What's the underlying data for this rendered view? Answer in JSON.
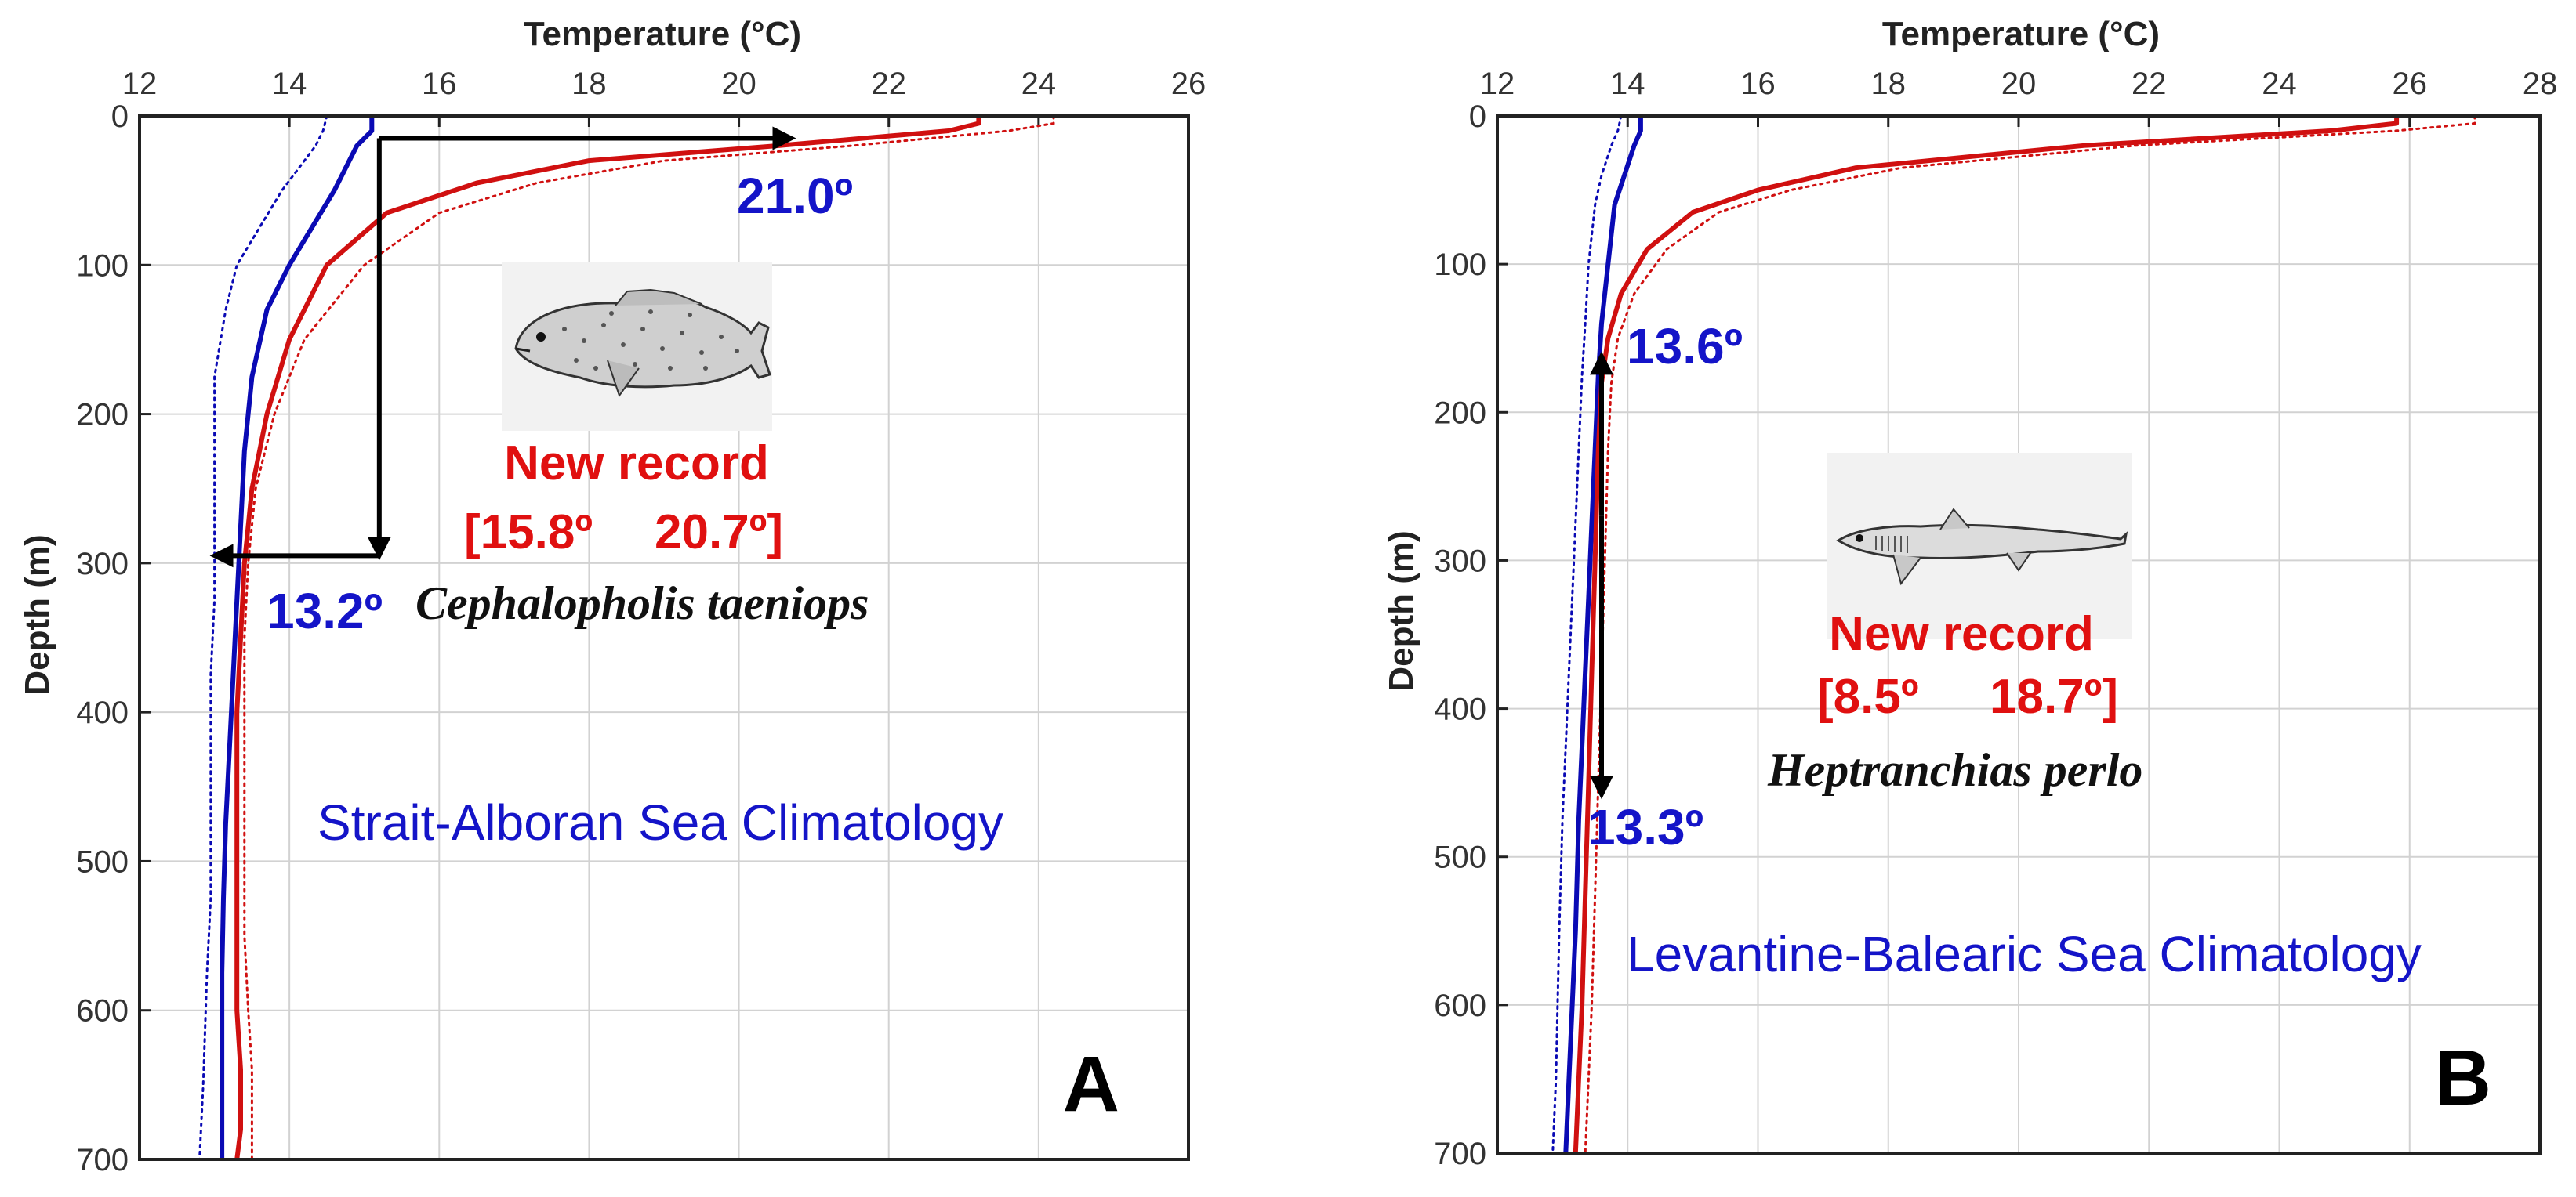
{
  "colors": {
    "mean": "#0a0ab4",
    "record": "#d01010",
    "annotation_blue": "#1414c8",
    "annotation_red": "#e01010",
    "grid": "#d2d2d2",
    "arrow": "#000000"
  },
  "chart_data": [
    {
      "type": "line",
      "panel": "A",
      "title": "",
      "xlabel": "Temperature (°C)",
      "ylabel": "Depth (m)",
      "xlim": [
        12,
        26
      ],
      "ylim": [
        0,
        700
      ],
      "y_inverted": true,
      "x_ticks": [
        "12",
        "14",
        "16",
        "18",
        "20",
        "22",
        "24",
        "26"
      ],
      "y_ticks": [
        "0",
        "100",
        "200",
        "300",
        "400",
        "500",
        "600",
        "700"
      ],
      "grid": true,
      "climatology_label": "Strait-Alboran Sea Climatology",
      "series": [
        {
          "name": "climatology mean",
          "style": "solid",
          "color": "blue",
          "x": [
            15.1,
            15.1,
            14.9,
            14.8,
            14.6,
            14.3,
            14.0,
            13.7,
            13.5,
            13.4,
            13.35,
            13.3,
            13.25,
            13.2,
            13.15,
            13.12,
            13.1,
            13.1,
            13.1
          ],
          "depth": [
            0,
            10,
            20,
            30,
            50,
            75,
            100,
            130,
            175,
            225,
            275,
            325,
            375,
            425,
            475,
            525,
            575,
            650,
            700
          ]
        },
        {
          "name": "climatology upper bound",
          "style": "dotted",
          "color": "blue",
          "x": [
            14.5,
            14.45,
            14.35,
            14.2,
            13.9,
            13.6,
            13.3,
            13.15,
            13.0,
            13.0,
            13.0,
            13.0,
            12.95,
            12.95,
            12.95,
            12.95,
            12.9,
            12.85,
            12.8
          ],
          "depth": [
            0,
            10,
            20,
            30,
            50,
            75,
            100,
            130,
            175,
            225,
            275,
            325,
            375,
            425,
            475,
            525,
            575,
            650,
            700
          ]
        },
        {
          "name": "new record profile",
          "style": "solid",
          "color": "red",
          "x": [
            23.2,
            23.2,
            22.8,
            20.5,
            18.0,
            16.5,
            15.3,
            14.5,
            14.0,
            13.7,
            13.5,
            13.4,
            13.35,
            13.3,
            13.3,
            13.3,
            13.3,
            13.3,
            13.35,
            13.35,
            13.3
          ],
          "depth": [
            0,
            5,
            10,
            20,
            30,
            45,
            65,
            100,
            150,
            200,
            250,
            300,
            350,
            400,
            450,
            500,
            550,
            600,
            640,
            680,
            700
          ]
        },
        {
          "name": "new record upper bound",
          "style": "dotted",
          "color": "red",
          "x": [
            24.2,
            24.2,
            23.6,
            21.5,
            19.0,
            17.3,
            16.0,
            15.0,
            14.2,
            13.8,
            13.55,
            13.45,
            13.4,
            13.4,
            13.4,
            13.4,
            13.4,
            13.45,
            13.5,
            13.5,
            13.5
          ],
          "depth": [
            0,
            5,
            10,
            20,
            30,
            45,
            65,
            100,
            150,
            200,
            250,
            300,
            350,
            400,
            450,
            500,
            550,
            600,
            640,
            680,
            700
          ]
        }
      ],
      "annotations": {
        "surface_temp": "21.0º",
        "depth_temp": "13.2º",
        "record_title": "New record",
        "record_min": "[15.8º",
        "record_max": "20.7º]",
        "species": "Cephalopholis taeniops",
        "panel_letter": "A"
      },
      "arrows": [
        {
          "from": [
            15.2,
            15
          ],
          "to": [
            15.2,
            295
          ]
        },
        {
          "from": [
            15.2,
            15
          ],
          "to": [
            20.7,
            15
          ]
        },
        {
          "from": [
            15.2,
            295
          ],
          "to": [
            13.0,
            295
          ]
        }
      ]
    },
    {
      "type": "line",
      "panel": "B",
      "title": "",
      "xlabel": "Temperature (°C)",
      "ylabel": "Depth (m)",
      "xlim": [
        12,
        28
      ],
      "ylim": [
        0,
        700
      ],
      "y_inverted": true,
      "x_ticks": [
        "12",
        "14",
        "16",
        "18",
        "20",
        "22",
        "24",
        "26",
        "28"
      ],
      "y_ticks": [
        "0",
        "100",
        "200",
        "300",
        "400",
        "500",
        "600",
        "700"
      ],
      "grid": true,
      "climatology_label": "Levantine-Balearic Sea Climatology",
      "series": [
        {
          "name": "climatology mean",
          "style": "solid",
          "color": "blue",
          "x": [
            14.2,
            14.2,
            14.1,
            13.95,
            13.8,
            13.7,
            13.6,
            13.55,
            13.5,
            13.45,
            13.4,
            13.35,
            13.3,
            13.25,
            13.2,
            13.1,
            13.05
          ],
          "depth": [
            0,
            10,
            20,
            40,
            60,
            100,
            140,
            175,
            225,
            275,
            325,
            375,
            425,
            475,
            550,
            650,
            700
          ]
        },
        {
          "name": "climatology upper bound",
          "style": "dotted",
          "color": "blue",
          "x": [
            13.9,
            13.85,
            13.75,
            13.6,
            13.5,
            13.4,
            13.35,
            13.3,
            13.25,
            13.2,
            13.15,
            13.1,
            13.05,
            13.0,
            12.95,
            12.9,
            12.85
          ],
          "depth": [
            0,
            10,
            20,
            40,
            60,
            100,
            140,
            175,
            225,
            275,
            325,
            375,
            425,
            475,
            550,
            650,
            700
          ]
        },
        {
          "name": "new record profile",
          "style": "solid",
          "color": "red",
          "x": [
            25.8,
            25.8,
            24.8,
            21.0,
            17.5,
            16.0,
            15.0,
            14.3,
            13.9,
            13.7,
            13.6,
            13.55,
            13.5,
            13.45,
            13.4,
            13.35,
            13.3,
            13.25,
            13.2
          ],
          "depth": [
            0,
            5,
            10,
            20,
            35,
            50,
            65,
            90,
            120,
            150,
            180,
            225,
            300,
            375,
            450,
            525,
            600,
            650,
            700
          ]
        },
        {
          "name": "new record upper bound",
          "style": "dotted",
          "color": "red",
          "x": [
            27.0,
            27.0,
            25.8,
            21.8,
            18.2,
            16.5,
            15.4,
            14.6,
            14.1,
            13.85,
            13.75,
            13.7,
            13.65,
            13.6,
            13.55,
            13.5,
            13.45,
            13.4,
            13.35
          ],
          "depth": [
            0,
            5,
            10,
            20,
            35,
            50,
            65,
            90,
            120,
            150,
            180,
            225,
            300,
            375,
            450,
            525,
            600,
            650,
            700
          ]
        }
      ],
      "annotations": {
        "surface_temp": "13.6º",
        "depth_temp": "13.3º",
        "record_title": "New record",
        "record_min": "[8.5º",
        "record_max": "18.7º]",
        "species": "Heptranchias perlo",
        "panel_letter": "B"
      },
      "arrows": [
        {
          "from": [
            13.6,
            270
          ],
          "to": [
            13.6,
            162
          ]
        },
        {
          "from": [
            13.6,
            270
          ],
          "to": [
            13.6,
            458
          ]
        }
      ]
    }
  ]
}
